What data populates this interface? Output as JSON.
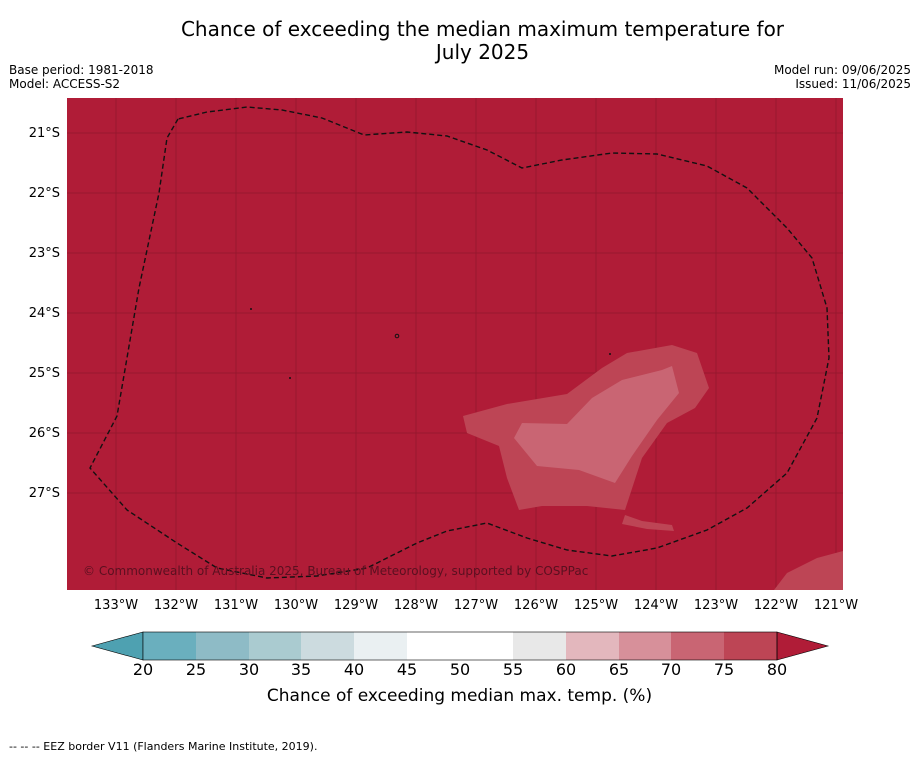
{
  "title_line1": "Chance of exceeding the median maximum temperature for",
  "title_line2": "July 2025",
  "meta": {
    "base_period": "Base period: 1981-2018",
    "model": "Model: ACCESS-S2",
    "model_run": "Model run: 09/06/2025",
    "issued": "Issued: 11/06/2025"
  },
  "map": {
    "copyright": "© Commonwealth of Australia 2025, Bureau of Meteorology, supported by COSPPac",
    "latitudes": [
      "21°S",
      "22°S",
      "23°S",
      "24°S",
      "25°S",
      "26°S",
      "27°S"
    ],
    "longitudes": [
      "133°W",
      "132°W",
      "131°W",
      "130°W",
      "129°W",
      "128°W",
      "127°W",
      "126°W",
      "125°W",
      "124°W",
      "123°W",
      "122°W",
      "121°W"
    ],
    "background_color": "#b01c37"
  },
  "colorbar": {
    "ticks": [
      "20",
      "25",
      "30",
      "35",
      "40",
      "45",
      "50",
      "55",
      "60",
      "65",
      "70",
      "75",
      "80"
    ],
    "colors": [
      "#6aafbe",
      "#8ebbc6",
      "#aacbd0",
      "#ccdbdf",
      "#eaf0f2",
      "#ffffff",
      "#ffffff",
      "#e8e8e8",
      "#e3b7bd",
      "#d7909a",
      "#c96573",
      "#bd4555"
    ],
    "under_color": "#4ea1b1",
    "over_color": "#b01c37",
    "label": "Chance of exceeding median max. temp. (%)"
  },
  "footnote": "--  --  -- EEZ border V11 (Flanders Marine Institute, 2019)."
}
